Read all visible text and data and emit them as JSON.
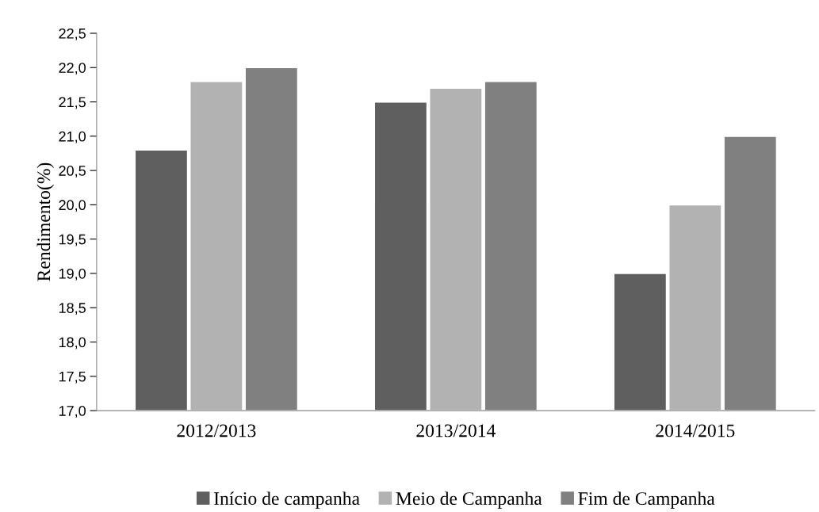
{
  "chart_data": {
    "type": "bar",
    "ylabel": "Rendimento(%)",
    "categories": [
      "2012/2013",
      "2013/2014",
      "2014/2015"
    ],
    "series": [
      {
        "name": "Início de campanha",
        "color": "#5f5f5f",
        "values": [
          20.8,
          21.5,
          19.0
        ]
      },
      {
        "name": "Meio de Campanha",
        "color": "#b2b2b2",
        "values": [
          21.8,
          21.7,
          20.0
        ]
      },
      {
        "name": "Fim de Campanha",
        "color": "#808080",
        "values": [
          22.0,
          21.8,
          21.0
        ]
      }
    ],
    "ylim": [
      17,
      22.5
    ],
    "yticks": [
      {
        "value": 17,
        "label": "17,0"
      },
      {
        "value": 17.5,
        "label": "17,5"
      },
      {
        "value": 18,
        "label": "18,0"
      },
      {
        "value": 18.5,
        "label": "18,5"
      },
      {
        "value": 19,
        "label": "19,0"
      },
      {
        "value": 19.5,
        "label": "19,5"
      },
      {
        "value": 20,
        "label": "20,0"
      },
      {
        "value": 20.5,
        "label": "20,5"
      },
      {
        "value": 21,
        "label": "21,0"
      },
      {
        "value": 21.5,
        "label": "21,5"
      },
      {
        "value": 22,
        "label": "22,0"
      },
      {
        "value": 22.5,
        "label": "22,5"
      }
    ],
    "grid": false,
    "legend": "bottom"
  }
}
